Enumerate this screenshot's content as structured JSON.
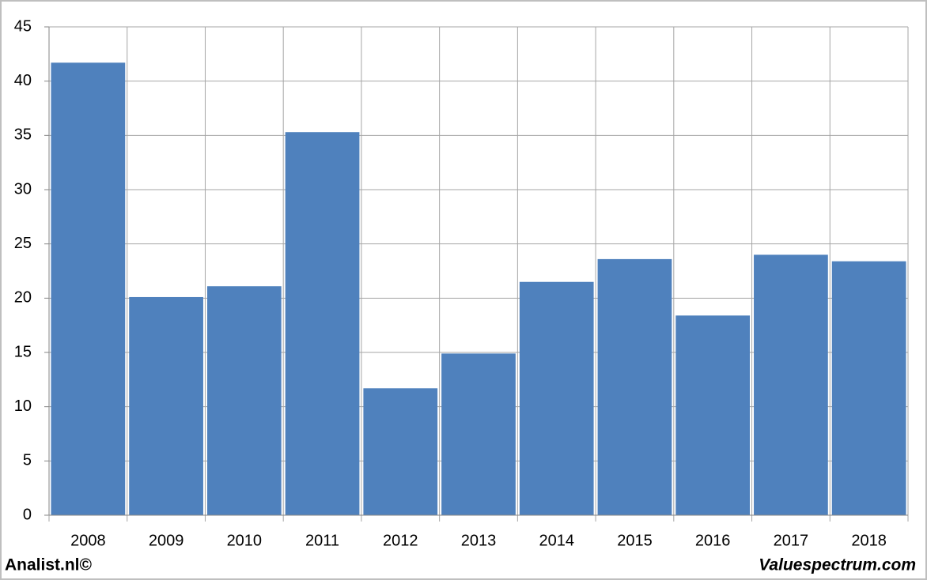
{
  "chart_data": {
    "type": "bar",
    "categories": [
      "2008",
      "2009",
      "2010",
      "2011",
      "2012",
      "2013",
      "2014",
      "2015",
      "2016",
      "2017",
      "2018"
    ],
    "values": [
      41.7,
      20.1,
      21.1,
      35.3,
      11.7,
      14.9,
      21.5,
      23.6,
      18.4,
      24.0,
      23.4
    ],
    "color": "#4f81bd",
    "ylim": [
      0,
      45
    ],
    "yticks": [
      0,
      5,
      10,
      15,
      20,
      25,
      30,
      35,
      40,
      45
    ],
    "grid": true,
    "footer_left": "Analist.nl©",
    "footer_right": "Valuespectrum.com"
  }
}
